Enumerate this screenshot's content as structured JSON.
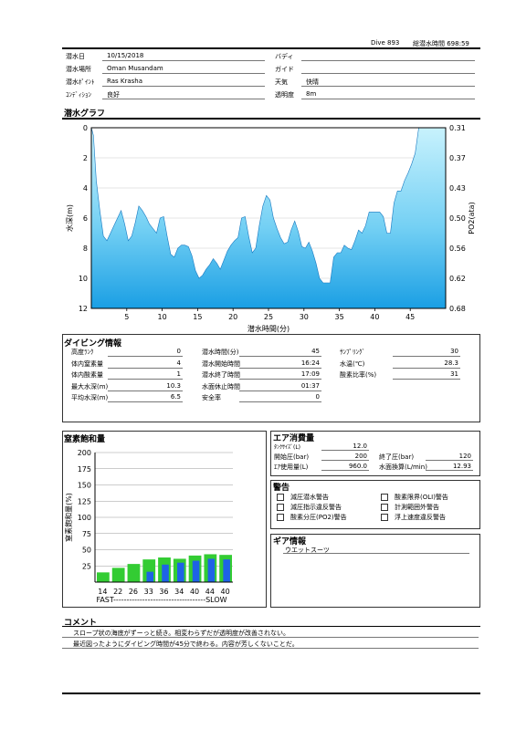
{
  "header": {
    "dive_no": "Dive 893",
    "total_time": "総潜水時間 698:59"
  },
  "info": {
    "date_label": "潜水日",
    "date": "10/15/2018",
    "buddy_label": "バディ",
    "buddy": "",
    "place_label": "潜水場所",
    "place": "Oman Musandam",
    "guide_label": "ガイド",
    "guide": "",
    "point_label": "潜水ﾎﾟｲﾝﾄ",
    "point": "Ras Krasha",
    "weather_label": "天気",
    "weather": "快晴",
    "condition_label": "ｺﾝﾃﾞｨｼｮﾝ",
    "condition": "良好",
    "visibility_label": "透明度",
    "visibility": "8m"
  },
  "graph": {
    "title": "潜水グラフ",
    "ylabel": "水深(m)",
    "y2label": "PO2(ata)",
    "xlabel": "潜水時間(分)",
    "yticks": [
      "0",
      "2",
      "4",
      "6",
      "8",
      "10",
      "12"
    ],
    "y2ticks": [
      "0.31",
      "0.37",
      "0.43",
      "0.50",
      "0.56",
      "0.62",
      "0.68"
    ],
    "xticks": [
      "5",
      "10",
      "15",
      "20",
      "25",
      "30",
      "35",
      "40",
      "45"
    ]
  },
  "chart_data": [
    {
      "type": "area",
      "title": "潜水グラフ",
      "xlabel": "潜水時間(分)",
      "ylabel": "水深(m)",
      "y2label": "PO2(ata)",
      "xlim": [
        0,
        50
      ],
      "ylim": [
        12,
        0
      ],
      "y2lim": [
        0.31,
        0.68
      ],
      "x": [
        0,
        0.3,
        0.7,
        1.2,
        1.7,
        2.2,
        2.7,
        3.2,
        3.7,
        4.2,
        4.7,
        5.2,
        5.7,
        6.2,
        6.7,
        7.2,
        7.7,
        8.2,
        8.7,
        9.2,
        9.7,
        10.2,
        10.7,
        11.2,
        11.7,
        12.2,
        12.7,
        13.2,
        13.7,
        14.2,
        14.7,
        15.2,
        15.7,
        16.2,
        16.7,
        17.2,
        17.7,
        18.2,
        18.7,
        19.2,
        19.7,
        20.2,
        20.7,
        21.2,
        21.7,
        22.2,
        22.7,
        23.2,
        23.7,
        24.2,
        24.7,
        25.2,
        25.7,
        26.2,
        26.7,
        27.2,
        27.7,
        28.2,
        28.7,
        29.2,
        29.7,
        30.2,
        30.7,
        31.2,
        31.7,
        32.2,
        32.7,
        33.2,
        33.7,
        34.2,
        34.7,
        35.2,
        35.7,
        36.2,
        36.7,
        37.2,
        37.7,
        38.2,
        38.7,
        39.2,
        39.7,
        40.2,
        40.7,
        41.2,
        41.7,
        42.2,
        42.7,
        43.2,
        43.7,
        44.2,
        44.7,
        45.2,
        45.7,
        46.2,
        46.7,
        47.2,
        47.7,
        48.2
      ],
      "depth": [
        0,
        0.5,
        3.5,
        5.5,
        7.2,
        7.5,
        7.0,
        6.5,
        6.0,
        5.5,
        6.4,
        7.5,
        7.2,
        6.3,
        5.2,
        5.5,
        5.9,
        6.4,
        6.7,
        7.0,
        6.0,
        5.9,
        7.2,
        8.4,
        8.6,
        8.0,
        7.8,
        7.8,
        7.9,
        8.5,
        9.5,
        10.0,
        9.8,
        9.4,
        9.1,
        8.7,
        9.0,
        9.4,
        8.8,
        8.2,
        7.8,
        7.5,
        7.3,
        6.0,
        5.9,
        7.2,
        8.3,
        8.0,
        6.5,
        5.2,
        4.5,
        4.8,
        6.0,
        6.7,
        7.3,
        7.7,
        7.6,
        6.8,
        6.2,
        6.9,
        7.9,
        8.0,
        7.6,
        8.2,
        9.0,
        10.0,
        10.3,
        10.3,
        10.3,
        8.6,
        8.3,
        8.3,
        7.8,
        8.0,
        8.1,
        7.5,
        6.8,
        7.0,
        6.5,
        5.6,
        5.6,
        5.6,
        5.6,
        5.9,
        7.0,
        7.0,
        5.0,
        4.2,
        4.2,
        3.5,
        3.0,
        2.4,
        1.7,
        0,
        0,
        0,
        0,
        0
      ]
    },
    {
      "type": "bar",
      "title": "窒素飽和量",
      "ylabel": "窒素飽和量(%)",
      "xlabel": "FAST-----------------------------------SLOW",
      "ylim": [
        0,
        200
      ],
      "categories": [
        "14",
        "22",
        "26",
        "33",
        "36",
        "34",
        "40",
        "44",
        "40"
      ],
      "series": [
        {
          "values": [
            15,
            22,
            28,
            35,
            38,
            36,
            41,
            43,
            42
          ]
        },
        {
          "values": [
            0,
            0,
            0,
            16,
            27,
            30,
            33,
            36,
            35
          ]
        }
      ]
    }
  ],
  "diving_info": {
    "title": "ダイビング情報",
    "col1": [
      {
        "label": "高度ﾗﾝｸ",
        "value": "0"
      },
      {
        "label": "体内窒素量",
        "value": "4"
      },
      {
        "label": "体内酸素量",
        "value": "1"
      },
      {
        "label": "最大水深(m)",
        "value": "10.3"
      },
      {
        "label": "平均水深(m)",
        "value": "6.5"
      }
    ],
    "col2": [
      {
        "label": "潜水時間(分)",
        "value": "45"
      },
      {
        "label": "潜水開始時間",
        "value": "16:24"
      },
      {
        "label": "潜水終了時間",
        "value": "17:09"
      },
      {
        "label": "水面休止時間",
        "value": "01:37"
      },
      {
        "label": "安全率",
        "value": "0"
      }
    ],
    "col3": [
      {
        "label": "ｻﾝﾌﾟﾘﾝｸﾞ",
        "value": "30"
      },
      {
        "label": "水温(℃)",
        "value": "28.3"
      },
      {
        "label": "酸素比率(%)",
        "value": "31"
      }
    ]
  },
  "nitrogen": {
    "title": "窒素飽和量",
    "ylabel": "窒素飽和量(%)",
    "yticks": [
      "200",
      "175",
      "150",
      "125",
      "100",
      "75",
      "50",
      "25"
    ],
    "fast_slow": "FAST-----------------------------------SLOW"
  },
  "air": {
    "title": "エア消費量",
    "tank_label": "ﾀﾝｸｻｲｽﾞ(L)",
    "tank": "12.0",
    "start_label": "開始圧(bar)",
    "start": "200",
    "end_label": "終了圧(bar)",
    "end": "120",
    "usage_label": "ｴｱ使用量(L)",
    "usage": "960.0",
    "surface_label": "水面換算(L/min)",
    "surface": "12.93"
  },
  "warning": {
    "title": "警告",
    "items": [
      "減圧潜水警告",
      "減圧指示違反警告",
      "酸素分圧(PO2)警告",
      "酸素限界(OLI)警告",
      "計測範囲外警告",
      "浮上速度違反警告"
    ]
  },
  "gear": {
    "title": "ギア情報",
    "item": "ウエットスーツ"
  },
  "comment": {
    "title": "コメント",
    "lines": [
      "スロープ状の海底がずーっと続き。相変わらずだが透明度が改善されない。",
      "最近図ったようにダイビング時間が45分で終わる。内容が芳しくないことだ。"
    ]
  },
  "colors": {
    "area_top": "#bfeffc",
    "area_bottom": "#1fa3e6",
    "bar_green": "#33cc33",
    "bar_blue": "#1e63e6"
  }
}
